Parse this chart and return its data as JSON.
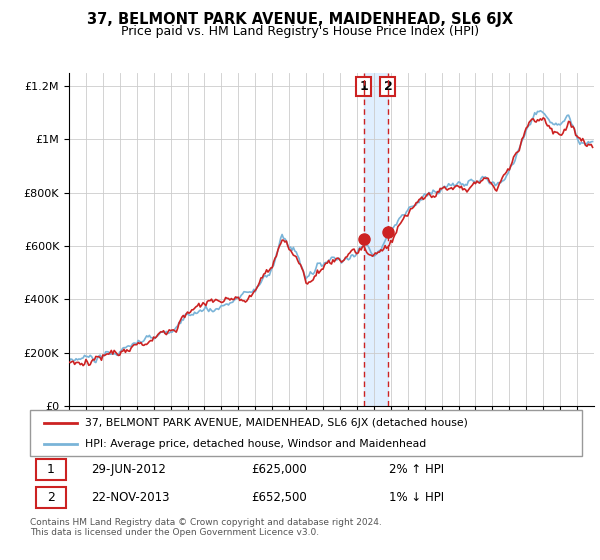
{
  "title": "37, BELMONT PARK AVENUE, MAIDENHEAD, SL6 6JX",
  "subtitle": "Price paid vs. HM Land Registry's House Price Index (HPI)",
  "legend_line1": "37, BELMONT PARK AVENUE, MAIDENHEAD, SL6 6JX (detached house)",
  "legend_line2": "HPI: Average price, detached house, Windsor and Maidenhead",
  "annotation1_label": "1",
  "annotation1_date": "29-JUN-2012",
  "annotation1_price": "£625,000",
  "annotation1_hpi": "2% ↑ HPI",
  "annotation2_label": "2",
  "annotation2_date": "22-NOV-2013",
  "annotation2_price": "£652,500",
  "annotation2_hpi": "1% ↓ HPI",
  "footer": "Contains HM Land Registry data © Crown copyright and database right 2024.\nThis data is licensed under the Open Government Licence v3.0.",
  "hpi_color": "#7ab4d8",
  "price_color": "#cc2222",
  "annotation_color": "#cc2222",
  "shade_color": "#ddeeff",
  "ylim": [
    0,
    1250000
  ],
  "yticks": [
    0,
    200000,
    400000,
    600000,
    800000,
    1000000,
    1200000
  ],
  "ytick_labels": [
    "£0",
    "£200K",
    "£400K",
    "£600K",
    "£800K",
    "£1M",
    "£1.2M"
  ],
  "background_color": "#ffffff",
  "grid_color": "#cccccc",
  "sale1_year": 2012.496,
  "sale1_price": 625000,
  "sale2_year": 2013.896,
  "sale2_price": 652500
}
